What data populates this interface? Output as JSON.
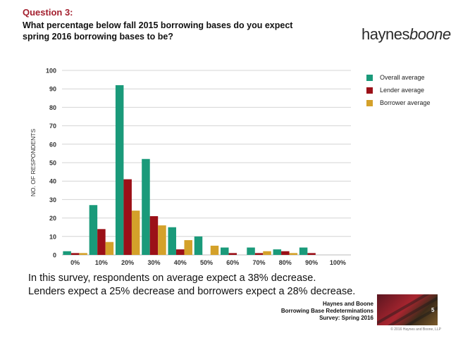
{
  "header": {
    "question_label": "Question 3:",
    "question_text": "What percentage below fall 2015 borrowing bases do you expect spring 2016 borrowing bases to be?"
  },
  "logo": {
    "part1": "haynes",
    "part2": "boone"
  },
  "chart_data": {
    "type": "bar",
    "categories": [
      "0%",
      "10%",
      "20%",
      "30%",
      "40%",
      "50%",
      "60%",
      "70%",
      "80%",
      "90%",
      "100%"
    ],
    "series": [
      {
        "name": "Overall average",
        "color": "#1a9a7a",
        "values": [
          2,
          27,
          92,
          52,
          15,
          10,
          4,
          4,
          3,
          4,
          0
        ]
      },
      {
        "name": "Lender average",
        "color": "#9b1018",
        "values": [
          1,
          14,
          41,
          21,
          3,
          0,
          1,
          1,
          2,
          1,
          0
        ]
      },
      {
        "name": "Borrower average",
        "color": "#d4a12a",
        "values": [
          1,
          7,
          24,
          16,
          8,
          5,
          0,
          2,
          1,
          0,
          0
        ]
      }
    ],
    "ylabel": "NO. OF RESPONDENTS",
    "xlabel": "",
    "ylim": [
      0,
      100
    ],
    "yticks": [
      0,
      10,
      20,
      30,
      40,
      50,
      60,
      70,
      80,
      90,
      100
    ],
    "grid": true,
    "legend_position": "right"
  },
  "summary": {
    "line1": "In this survey, respondents on average expect a 38% decrease.",
    "line2": "Lenders expect a 25% decrease and borrowers expect a 28% decrease."
  },
  "footer": {
    "line1": "Haynes and Boone",
    "line2": "Borrowing Base Redeterminations",
    "line3": "Survey: Spring 2016",
    "page_number": "5",
    "copyright": "© 2016 Haynes and Boone, LLP"
  }
}
